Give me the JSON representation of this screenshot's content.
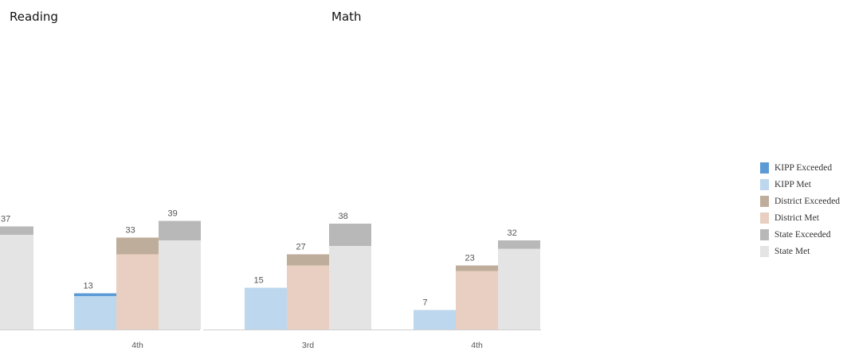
{
  "titles": {
    "reading": "Reading",
    "math": "Math"
  },
  "legend": [
    {
      "label": "KIPP Exceeded",
      "color": "#5b9bd5"
    },
    {
      "label": "KIPP Met",
      "color": "#bdd7ee"
    },
    {
      "label": "District Exceeded",
      "color": "#bfad9b"
    },
    {
      "label": "District Met",
      "color": "#e8cfc1"
    },
    {
      "label": "State Exceeded",
      "color": "#b8b8b8"
    },
    {
      "label": "State Met",
      "color": "#e4e4e4"
    }
  ],
  "chart_data": [
    {
      "type": "bar",
      "stacked": true,
      "title": "Reading",
      "categories": [
        "4th"
      ],
      "series": [
        {
          "name": "KIPP Met",
          "values": [
            12
          ]
        },
        {
          "name": "KIPP Exceeded",
          "values": [
            1
          ]
        },
        {
          "name": "District Met",
          "values": [
            27
          ]
        },
        {
          "name": "District Exceeded",
          "values": [
            6
          ]
        },
        {
          "name": "State Met",
          "values": [
            32
          ]
        },
        {
          "name": "State Exceeded",
          "values": [
            7
          ]
        }
      ],
      "totals": {
        "4th": {
          "KIPP": 13,
          "District": 33,
          "State": 39
        }
      },
      "partial_visible_total": 37
    },
    {
      "type": "bar",
      "stacked": true,
      "title": "Math",
      "categories": [
        "3rd",
        "4th"
      ],
      "series": [
        {
          "name": "KIPP Met",
          "values": [
            15,
            7
          ]
        },
        {
          "name": "KIPP Exceeded",
          "values": [
            0,
            0
          ]
        },
        {
          "name": "District Met",
          "values": [
            23,
            21
          ]
        },
        {
          "name": "District Exceeded",
          "values": [
            4,
            2
          ]
        },
        {
          "name": "State Met",
          "values": [
            30,
            29
          ]
        },
        {
          "name": "State Exceeded",
          "values": [
            8,
            3
          ]
        }
      ],
      "totals": {
        "3rd": {
          "KIPP": 15,
          "District": 27,
          "State": 38
        },
        "4th": {
          "KIPP": 7,
          "District": 23,
          "State": 32
        }
      }
    }
  ]
}
